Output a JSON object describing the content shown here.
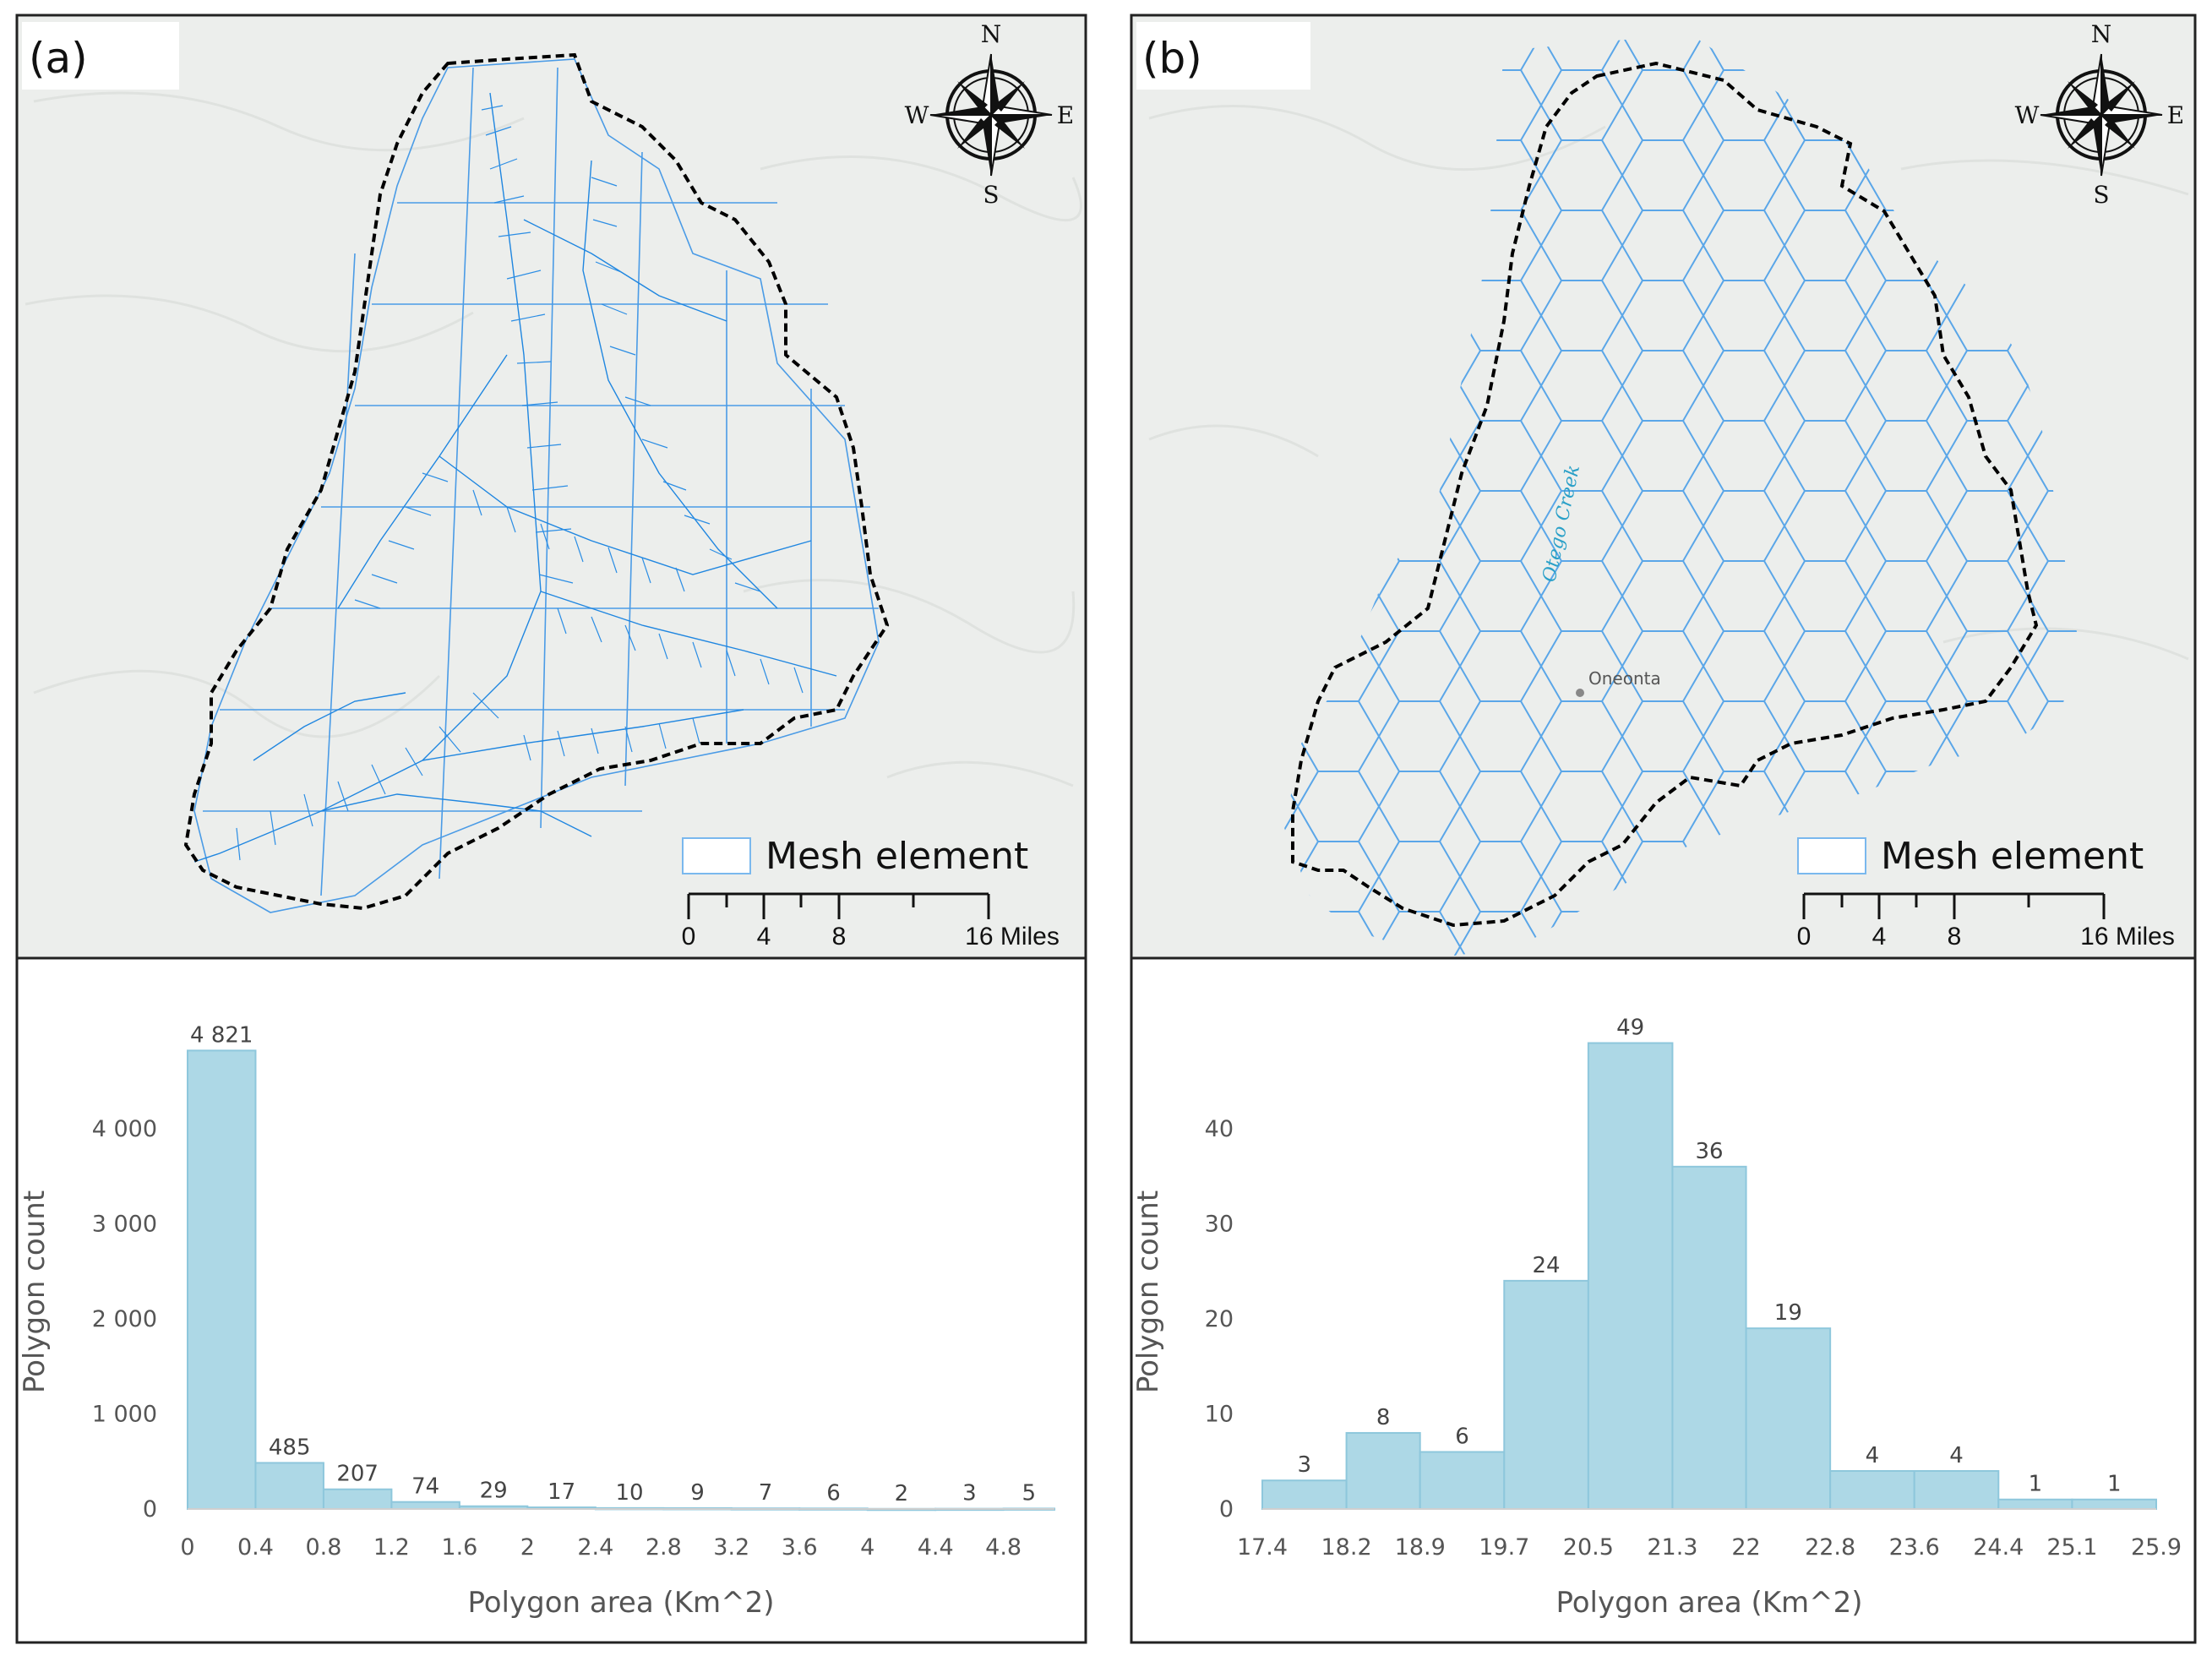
{
  "panels": [
    {
      "label": "(a)",
      "legend_label": "Mesh element",
      "scale_ticks": [
        "0",
        "4",
        "8",
        "16 Miles"
      ],
      "compass": {
        "n": "N",
        "e": "E",
        "s": "S",
        "w": "W"
      }
    },
    {
      "label": "(b)",
      "legend_label": "Mesh element",
      "scale_ticks": [
        "0",
        "4",
        "8",
        "16 Miles"
      ],
      "compass": {
        "n": "N",
        "e": "E",
        "s": "S",
        "w": "W"
      },
      "creek_label": "Otego Creek",
      "place_label": "Oneonta"
    }
  ],
  "chart_data": [
    {
      "type": "bar",
      "bin_edges": [
        0,
        0.4,
        0.8,
        1.2,
        1.6,
        2,
        2.4,
        2.8,
        3.2,
        3.6,
        4,
        4.4,
        4.8,
        5.1
      ],
      "x_tick_labels": [
        "0",
        "0.4",
        "0.8",
        "1.2",
        "1.6",
        "2",
        "2.4",
        "2.8",
        "3.2",
        "3.6",
        "4",
        "4.4",
        "4.8"
      ],
      "values": [
        4821,
        485,
        207,
        74,
        29,
        17,
        10,
        9,
        7,
        6,
        2,
        3,
        5
      ],
      "data_labels": [
        "4 821",
        "485",
        "207",
        "74",
        "29",
        "17",
        "10",
        "9",
        "7",
        "6",
        "2",
        "3",
        "5"
      ],
      "y_ticks": [
        0,
        1000,
        2000,
        3000,
        4000
      ],
      "y_tick_labels": [
        "0",
        "1 000",
        "2 000",
        "3 000",
        "4 000"
      ],
      "ylim": [
        0,
        5100
      ],
      "xlabel": "Polygon area (Km^2)",
      "ylabel": "Polygon count",
      "title": "",
      "grid": false
    },
    {
      "type": "bar",
      "bin_edges": [
        17.4,
        18.2,
        18.9,
        19.7,
        20.5,
        21.3,
        22,
        22.8,
        23.6,
        24.4,
        25.1,
        25.9
      ],
      "x_tick_labels": [
        "17.4",
        "18.2",
        "18.9",
        "19.7",
        "20.5",
        "21.3",
        "22",
        "22.8",
        "23.6",
        "24.4",
        "25.1",
        "25.9"
      ],
      "values": [
        3,
        8,
        6,
        24,
        49,
        36,
        19,
        4,
        4,
        1,
        1
      ],
      "data_labels": [
        "3",
        "8",
        "6",
        "24",
        "49",
        "36",
        "19",
        "4",
        "4",
        "1",
        "1"
      ],
      "y_ticks": [
        0,
        10,
        20,
        30,
        40
      ],
      "y_tick_labels": [
        "0",
        "10",
        "20",
        "30",
        "40"
      ],
      "ylim": [
        0,
        51
      ],
      "xlabel": "Polygon area (Km^2)",
      "ylabel": "Polygon count",
      "title": "",
      "grid": false
    }
  ]
}
